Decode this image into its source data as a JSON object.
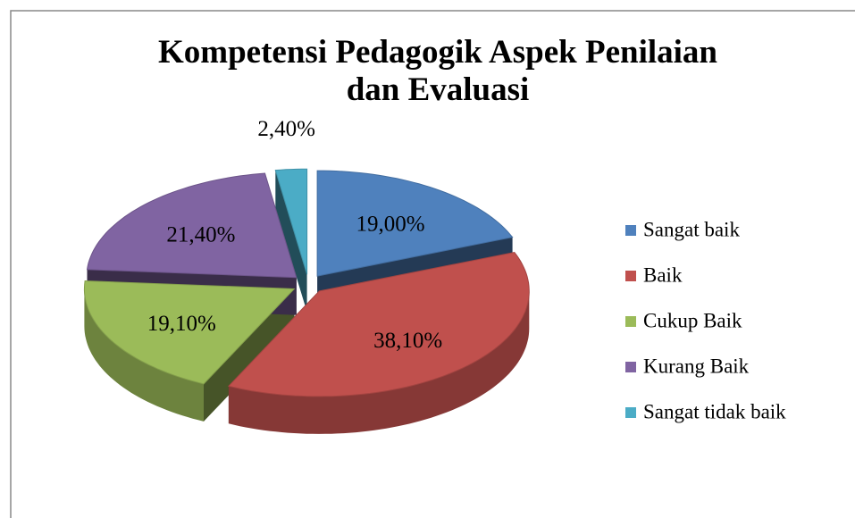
{
  "chart_data": {
    "type": "pie3d",
    "title": "Kompetensi Pedagogik Aspek Penilaian dan Evaluasi",
    "categories": [
      "Sangat baik",
      "Baik",
      "Cukup Baik",
      "Kurang Baik",
      "Sangat tidak baik"
    ],
    "values": [
      19.0,
      38.1,
      19.1,
      21.4,
      2.4
    ],
    "value_labels": [
      "19,00%",
      "38,10%",
      "19,10%",
      "21,40%",
      "2,40%"
    ],
    "colors": [
      "#4f81bd",
      "#c0504d",
      "#9bbb59",
      "#8064a2",
      "#4bacc6"
    ],
    "legend": "right"
  }
}
